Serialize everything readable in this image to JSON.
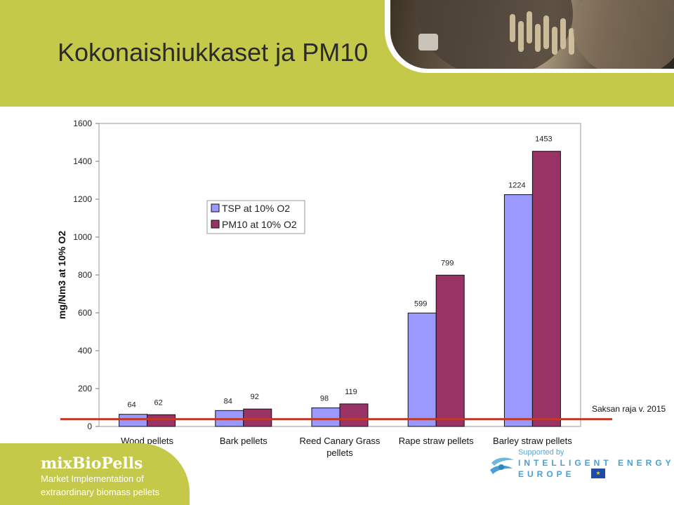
{
  "page": {
    "title": "Kokonaishiukkaset ja PM10"
  },
  "footer": {
    "brand_name": "mixBioPells",
    "tagline_line1": "Market Implementation of",
    "tagline_line2": "extraordinary biomass pellets",
    "supported_by": "Supported by",
    "program_line1": "INTELLIGENT ENERGY",
    "program_line2": "EUROPE"
  },
  "colors": {
    "header_band": "#c5c94a",
    "series_tsp": "#9999ff",
    "series_pm10": "#993366",
    "limit_line": "#c0392b",
    "logo_blue": "#4aa0d4"
  },
  "chart_data": {
    "type": "bar",
    "title": "",
    "xlabel": "",
    "ylabel": "mg/Nm3 at 10% O2",
    "ylim": [
      0,
      1600
    ],
    "yticks": [
      0,
      200,
      400,
      600,
      800,
      1000,
      1200,
      1400,
      1600
    ],
    "grid": false,
    "legend_position": "top-left",
    "categories": [
      "Wood pellets",
      "Bark pellets",
      "Reed Canary Grass pellets",
      "Rape straw pellets",
      "Barley straw pellets"
    ],
    "series": [
      {
        "name": "TSP at 10% O2",
        "color": "#9999ff",
        "values": [
          64,
          84,
          98,
          599,
          1224
        ]
      },
      {
        "name": "PM10 at 10% O2",
        "color": "#993366",
        "values": [
          62,
          92,
          119,
          799,
          1453
        ]
      }
    ],
    "reference_line": {
      "value": 20,
      "label": "Saksan raja v. 2015",
      "color": "#c0392b"
    }
  }
}
